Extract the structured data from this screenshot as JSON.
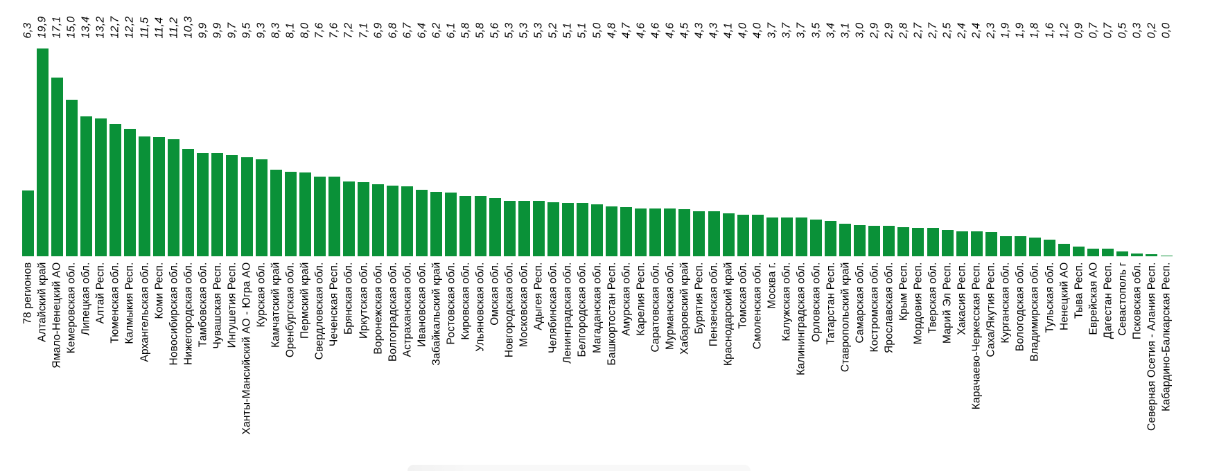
{
  "chart_data": {
    "type": "bar",
    "title": "",
    "xlabel": "",
    "ylabel": "",
    "ylim": [
      0,
      20
    ],
    "grid": false,
    "legend": "none",
    "bar_color": "#0a9138",
    "value_label_style": "rotated-90-italic",
    "category_label_style": "rotated-90",
    "decimal_separator": ",",
    "categories": [
      "78 регионов",
      "Алтайский край",
      "Ямало-Ненецкий АО",
      "Кемеровская обл.",
      "Липецкая обл.",
      "Алтай Респ.",
      "Тюменская обл.",
      "Калмыкия Респ.",
      "Архангельская обл.",
      "Коми Респ.",
      "Новосибирская обл.",
      "Нижегородская обл.",
      "Тамбовская обл.",
      "Чувашская Респ.",
      "Ингушетия Респ.",
      "Ханты-Мансийский АО - Югра АО",
      "Курская обл.",
      "Камчатский край",
      "Оренбургская обл.",
      "Пермский край",
      "Свердловская обл.",
      "Чеченская Респ.",
      "Брянская обл.",
      "Иркутская обл.",
      "Воронежская обл.",
      "Волгоградская обл.",
      "Астраханская обл.",
      "Ивановская обл.",
      "Забайкальский край",
      "Ростовская обл.",
      "Кировская обл.",
      "Ульяновская обл.",
      "Омская обл.",
      "Новгородская обл.",
      "Московская обл.",
      "Адыгея Респ.",
      "Челябинская обл.",
      "Ленинградская обл.",
      "Белгородская обл.",
      "Магаданская обл.",
      "Башкортостан Респ.",
      "Амурская обл.",
      "Карелия Респ.",
      "Саратовская обл.",
      "Мурманская обл.",
      "Хабаровский край",
      "Бурятия Респ.",
      "Пензенская обл.",
      "Краснодарский край",
      "Томская обл.",
      "Смоленская обл.",
      "Москва г.",
      "Калужская обл.",
      "Калининградская обл.",
      "Орловская обл.",
      "Татарстан Респ.",
      "Ставропольский край",
      "Самарская обл.",
      "Костромская обл.",
      "Ярославская обл.",
      "Крым Респ.",
      "Мордовия Респ.",
      "Тверская обл.",
      "Марий Эл Респ.",
      "Хакасия Респ.",
      "Карачаево-Черкесская Респ.",
      "Саха/Якутия Респ.",
      "Курганская обл.",
      "Вологодская обл.",
      "Владимирская обл.",
      "Тульская обл.",
      "Ненецкий АО",
      "Тыва Респ.",
      "Еврейская АО",
      "Дагестан Респ.",
      "Севастополь г",
      "Псковская обл.",
      "Северная Осетия - Алания Респ.",
      "Кабардино-Балкарская Респ."
    ],
    "values": [
      6.3,
      19.9,
      17.1,
      15.0,
      13.4,
      13.2,
      12.7,
      12.2,
      11.5,
      11.4,
      11.2,
      10.3,
      9.9,
      9.9,
      9.7,
      9.5,
      9.3,
      8.3,
      8.1,
      8.0,
      7.6,
      7.6,
      7.2,
      7.1,
      6.9,
      6.8,
      6.7,
      6.4,
      6.2,
      6.1,
      5.8,
      5.8,
      5.6,
      5.3,
      5.3,
      5.3,
      5.2,
      5.1,
      5.1,
      5.0,
      4.8,
      4.7,
      4.6,
      4.6,
      4.6,
      4.5,
      4.3,
      4.3,
      4.1,
      4.0,
      4.0,
      3.7,
      3.7,
      3.7,
      3.5,
      3.4,
      3.1,
      3.0,
      2.9,
      2.9,
      2.8,
      2.7,
      2.7,
      2.5,
      2.4,
      2.4,
      2.3,
      1.9,
      1.9,
      1.8,
      1.6,
      1.2,
      0.9,
      0.7,
      0.7,
      0.5,
      0.3,
      0.2,
      0.0
    ],
    "value_labels": [
      "6,3",
      "19,9",
      "17,1",
      "15,0",
      "13,4",
      "13,2",
      "12,7",
      "12,2",
      "11,5",
      "11,4",
      "11,2",
      "10,3",
      "9,9",
      "9,9",
      "9,7",
      "9,5",
      "9,3",
      "8,3",
      "8,1",
      "8,0",
      "7,6",
      "7,6",
      "7,2",
      "7,1",
      "6,9",
      "6,8",
      "6,7",
      "6,4",
      "6,2",
      "6,1",
      "5,8",
      "5,8",
      "5,6",
      "5,3",
      "5,3",
      "5,3",
      "5,2",
      "5,1",
      "5,1",
      "5,0",
      "4,8",
      "4,7",
      "4,6",
      "4,6",
      "4,6",
      "4,5",
      "4,3",
      "4,3",
      "4,1",
      "4,0",
      "4,0",
      "3,7",
      "3,7",
      "3,7",
      "3,5",
      "3,4",
      "3,1",
      "3,0",
      "2,9",
      "2,9",
      "2,8",
      "2,7",
      "2,7",
      "2,5",
      "2,4",
      "2,4",
      "2,3",
      "1,9",
      "1,9",
      "1,8",
      "1,6",
      "1,2",
      "0,9",
      "0,7",
      "0,7",
      "0,5",
      "0,3",
      "0,2",
      "0,0"
    ]
  }
}
